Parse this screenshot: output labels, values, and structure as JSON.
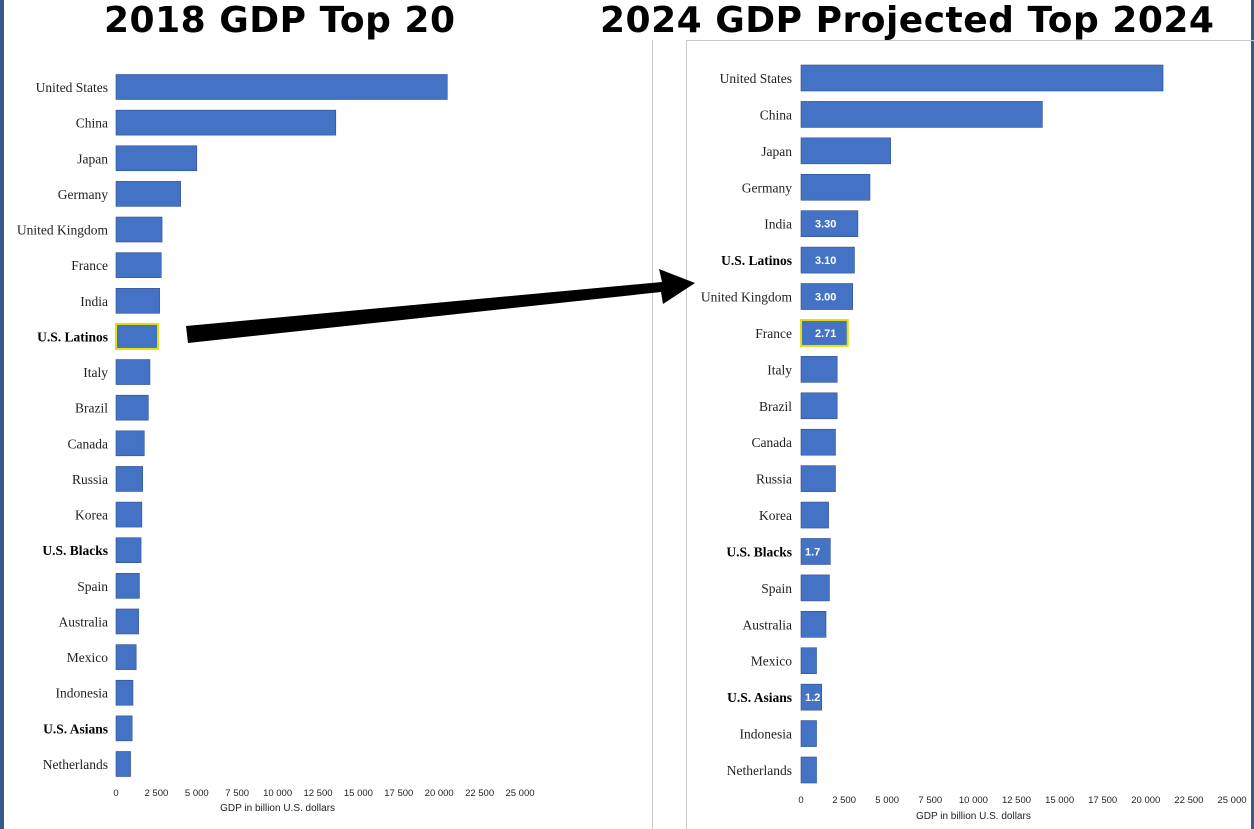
{
  "chart_data": [
    {
      "type": "bar",
      "orientation": "horizontal",
      "title": "2018 GDP Top 20",
      "xlabel": "GDP in billion U.S. dollars",
      "xlim": [
        0,
        25000
      ],
      "xticks": [
        "0",
        "2 500",
        "5 000",
        "7 500",
        "10 000",
        "12 500",
        "15 000",
        "17 500",
        "20 000",
        "22 500",
        "25 000"
      ],
      "categories": [
        "United States",
        "China",
        "Japan",
        "Germany",
        "United Kingdom",
        "France",
        "India",
        "U.S. Latinos",
        "Italy",
        "Brazil",
        "Canada",
        "Russia",
        "Korea",
        "U.S. Blacks",
        "Spain",
        "Australia",
        "Mexico",
        "Indonesia",
        "U.S. Asians",
        "Netherlands"
      ],
      "values": [
        20500,
        13600,
        5000,
        4000,
        2850,
        2800,
        2700,
        2600,
        2100,
        2000,
        1750,
        1650,
        1600,
        1550,
        1450,
        1400,
        1250,
        1050,
        1000,
        900
      ],
      "bold_categories": [
        "U.S. Latinos",
        "U.S. Blacks",
        "U.S. Asians"
      ],
      "highlighted": [
        "U.S. Latinos"
      ],
      "data_labels": [],
      "bar_color": "#4472c4",
      "highlight_color": "#e8e000"
    },
    {
      "type": "bar",
      "orientation": "horizontal",
      "title": "2024 GDP Projected Top 2024",
      "xlabel": "GDP in billion U.S. dollars",
      "xlim": [
        0,
        25000
      ],
      "xticks": [
        "0",
        "2 500",
        "5 000",
        "7 500",
        "10 000",
        "12 500",
        "15 000",
        "17 500",
        "20 000",
        "22 500",
        "25 000"
      ],
      "categories": [
        "United States",
        "China",
        "Japan",
        "Germany",
        "India",
        "U.S. Latinos",
        "United Kingdom",
        "France",
        "Italy",
        "Brazil",
        "Canada",
        "Russia",
        "Korea",
        "U.S. Blacks",
        "Spain",
        "Australia",
        "Mexico",
        "U.S. Asians",
        "Indonesia",
        "Netherlands"
      ],
      "values": [
        21000,
        14000,
        5200,
        4000,
        3300,
        3100,
        3000,
        2710,
        2100,
        2100,
        2000,
        2000,
        1600,
        1700,
        1650,
        1450,
        900,
        1200,
        900,
        900
      ],
      "bold_categories": [
        "U.S. Latinos",
        "U.S. Blacks",
        "U.S. Asians"
      ],
      "highlighted": [
        "France"
      ],
      "data_labels": [
        "",
        "",
        "",
        "",
        "3.30",
        "3.10",
        "3.00",
        "2.71",
        "",
        "",
        "",
        "",
        "",
        "1.7",
        "",
        "",
        "",
        "1.2",
        "",
        ""
      ],
      "bar_color": "#4472c4",
      "highlight_color": "#e8e000"
    }
  ]
}
